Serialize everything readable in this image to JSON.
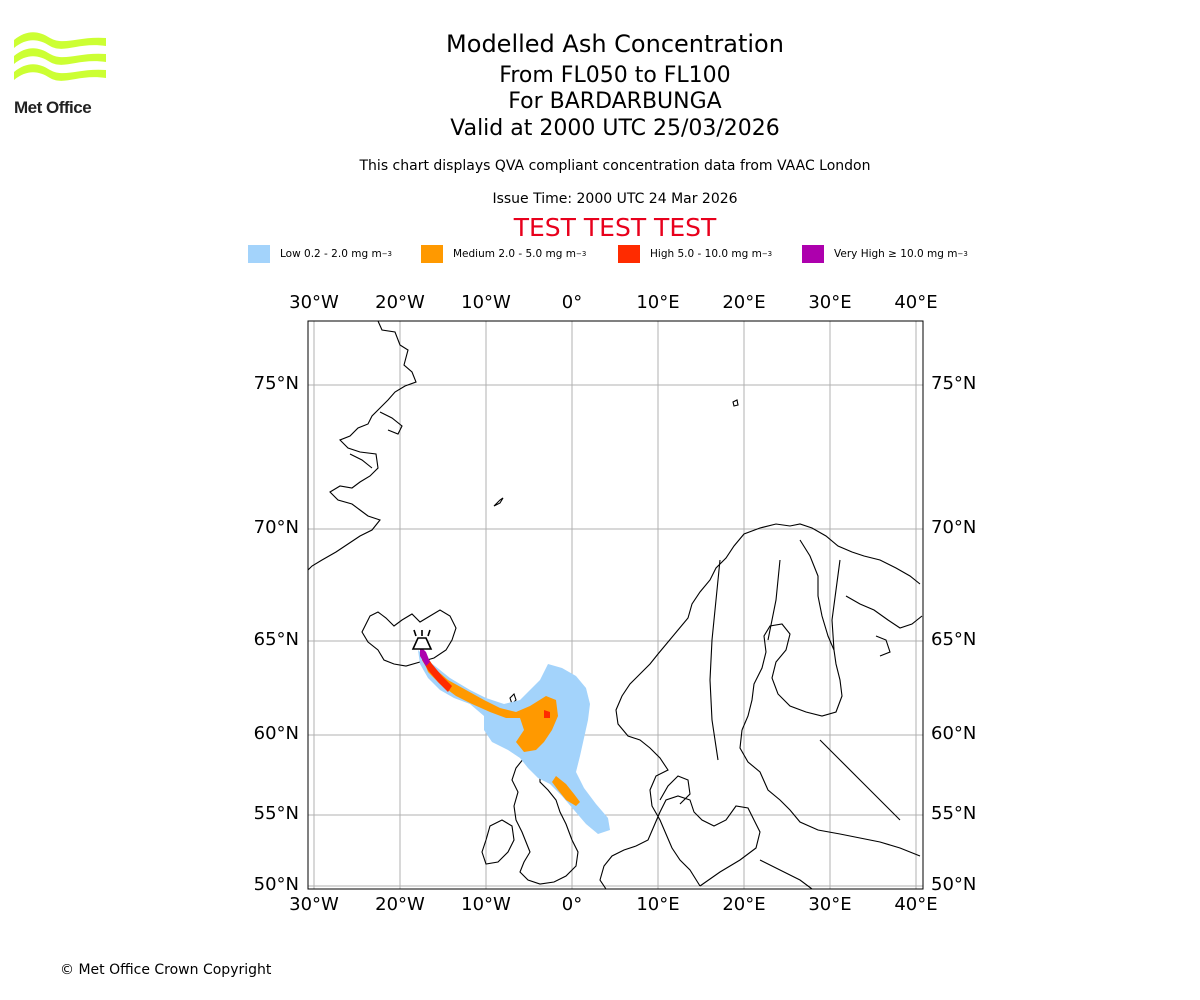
{
  "header": {
    "title": "Modelled Ash Concentration",
    "flight_levels": "From FL050 to FL100",
    "volcano": "For BARDARBUNGA",
    "valid_time": "Valid at 2000 UTC 25/03/2026",
    "description": "This chart displays QVA compliant concentration data from VAAC London",
    "issue_time": "Issue Time: 2000 UTC 24 Mar 2026",
    "test_banner": "TEST TEST TEST"
  },
  "logo": {
    "text": "Met Office",
    "color": "#ccff33"
  },
  "legend": [
    {
      "label": "Low 0.2 - 2.0 mg m",
      "sup": "−3",
      "color": "#a3d3fb"
    },
    {
      "label": "Medium 2.0 - 5.0 mg m",
      "sup": "−3",
      "color": "#ff9900"
    },
    {
      "label": "High 5.0 - 10.0 mg m",
      "sup": "−3",
      "color": "#ff2b00"
    },
    {
      "label": "Very High ≥ 10.0 mg m",
      "sup": "−3",
      "color": "#ad00ad"
    }
  ],
  "axes": {
    "lon_ticks": [
      "30°W",
      "20°W",
      "10°W",
      "0°",
      "10°E",
      "20°E",
      "30°E",
      "40°E"
    ],
    "lat_ticks": [
      "75°N",
      "70°N",
      "65°N",
      "60°N",
      "55°N",
      "50°N"
    ]
  },
  "footer": {
    "copyright": "© Met Office Crown Copyright"
  }
}
